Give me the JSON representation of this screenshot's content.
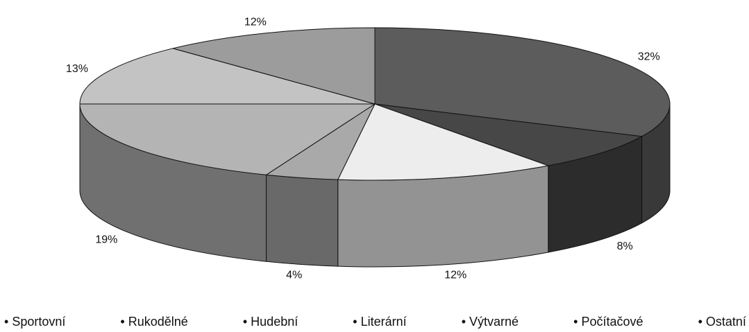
{
  "chart_data": {
    "type": "pie",
    "categories": [
      "Sportovní",
      "Rukodělné",
      "Hudební",
      "Literární",
      "Výtvarné",
      "Počítačové",
      "Ostatní"
    ],
    "values": [
      32,
      8,
      12,
      4,
      19,
      13,
      12
    ],
    "value_labels": [
      "32%",
      "8%",
      "12%",
      "4%",
      "19%",
      "13%",
      "12%"
    ],
    "colors": [
      "#5c5c5c",
      "#474747",
      "#ededed",
      "#a9a9a9",
      "#b4b4b4",
      "#c3c3c3",
      "#9c9c9c"
    ]
  }
}
